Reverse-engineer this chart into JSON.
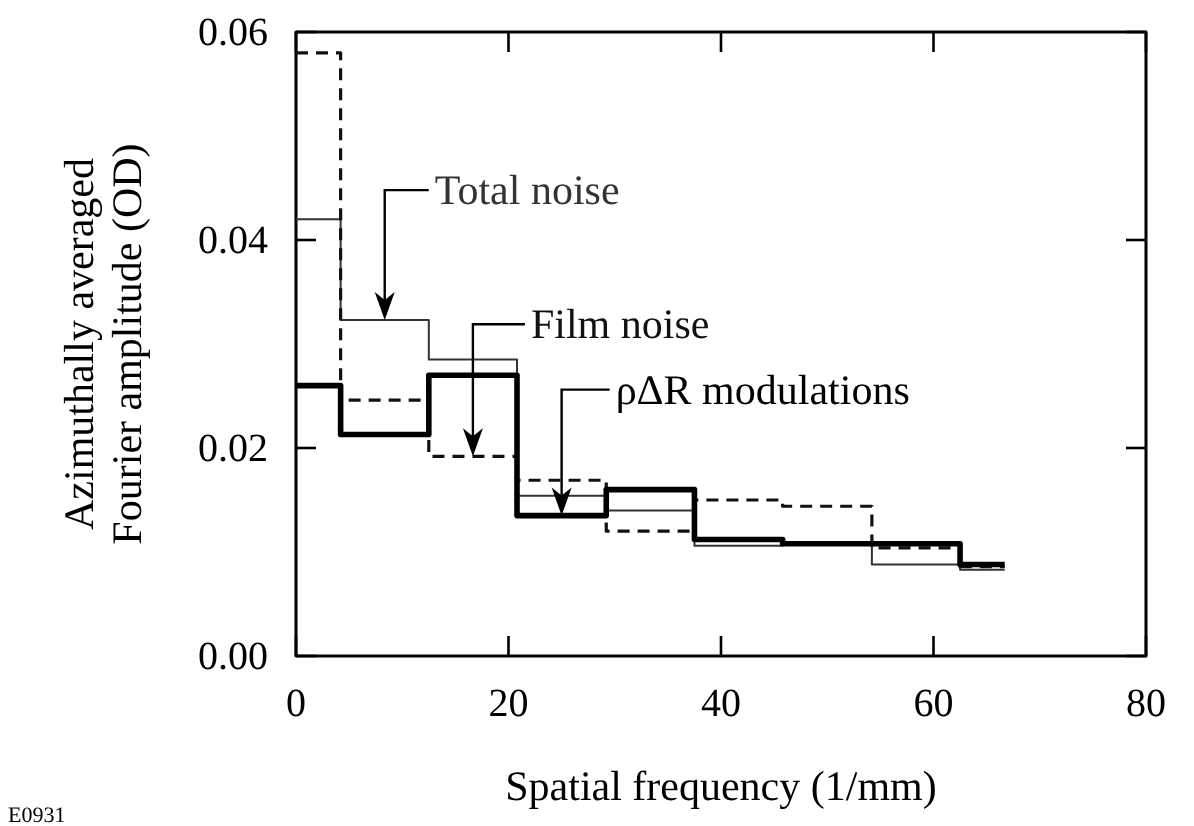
{
  "chart_data": {
    "type": "histogram",
    "xlabel": "Spatial frequency (1/mm)",
    "ylabel": "Azimuthally averaged Fourier amplitude (OD)",
    "bins": [
      0,
      4.2,
      12.5,
      20.8,
      29.2,
      37.5,
      45.8,
      54.2,
      62.5,
      66.7
    ],
    "series": [
      {
        "name": "Total noise",
        "color": "#333333",
        "line_style": "solid",
        "values": [
          0.042,
          0.0323,
          0.0285,
          0.0154,
          0.014,
          0.0106,
          0.0108,
          0.0088,
          0.0083
        ]
      },
      {
        "name": "Film noise",
        "color": "#111111",
        "line_style": "dashed",
        "values": [
          0.058,
          0.0246,
          0.0192,
          0.0169,
          0.012,
          0.015,
          0.0144,
          0.0104,
          0.0086
        ]
      },
      {
        "name": "ρΔR modulations",
        "color": "#000000",
        "line_style": "solid",
        "values": [
          0.026,
          0.0213,
          0.027,
          0.0135,
          0.016,
          0.0112,
          0.0108,
          0.0108,
          0.0088
        ]
      }
    ],
    "xlim": [
      0,
      80
    ],
    "ylim": [
      0,
      0.06
    ],
    "xticks": [
      0,
      20,
      40,
      60,
      80
    ],
    "yticks": [
      {
        "value": 0,
        "label": "0.00"
      },
      {
        "value": 0.02,
        "label": "0.02"
      },
      {
        "value": 0.04,
        "label": "0.04"
      },
      {
        "value": 0.06,
        "label": "0.06"
      }
    ],
    "grid": false,
    "annotations": [
      "E0931"
    ]
  }
}
